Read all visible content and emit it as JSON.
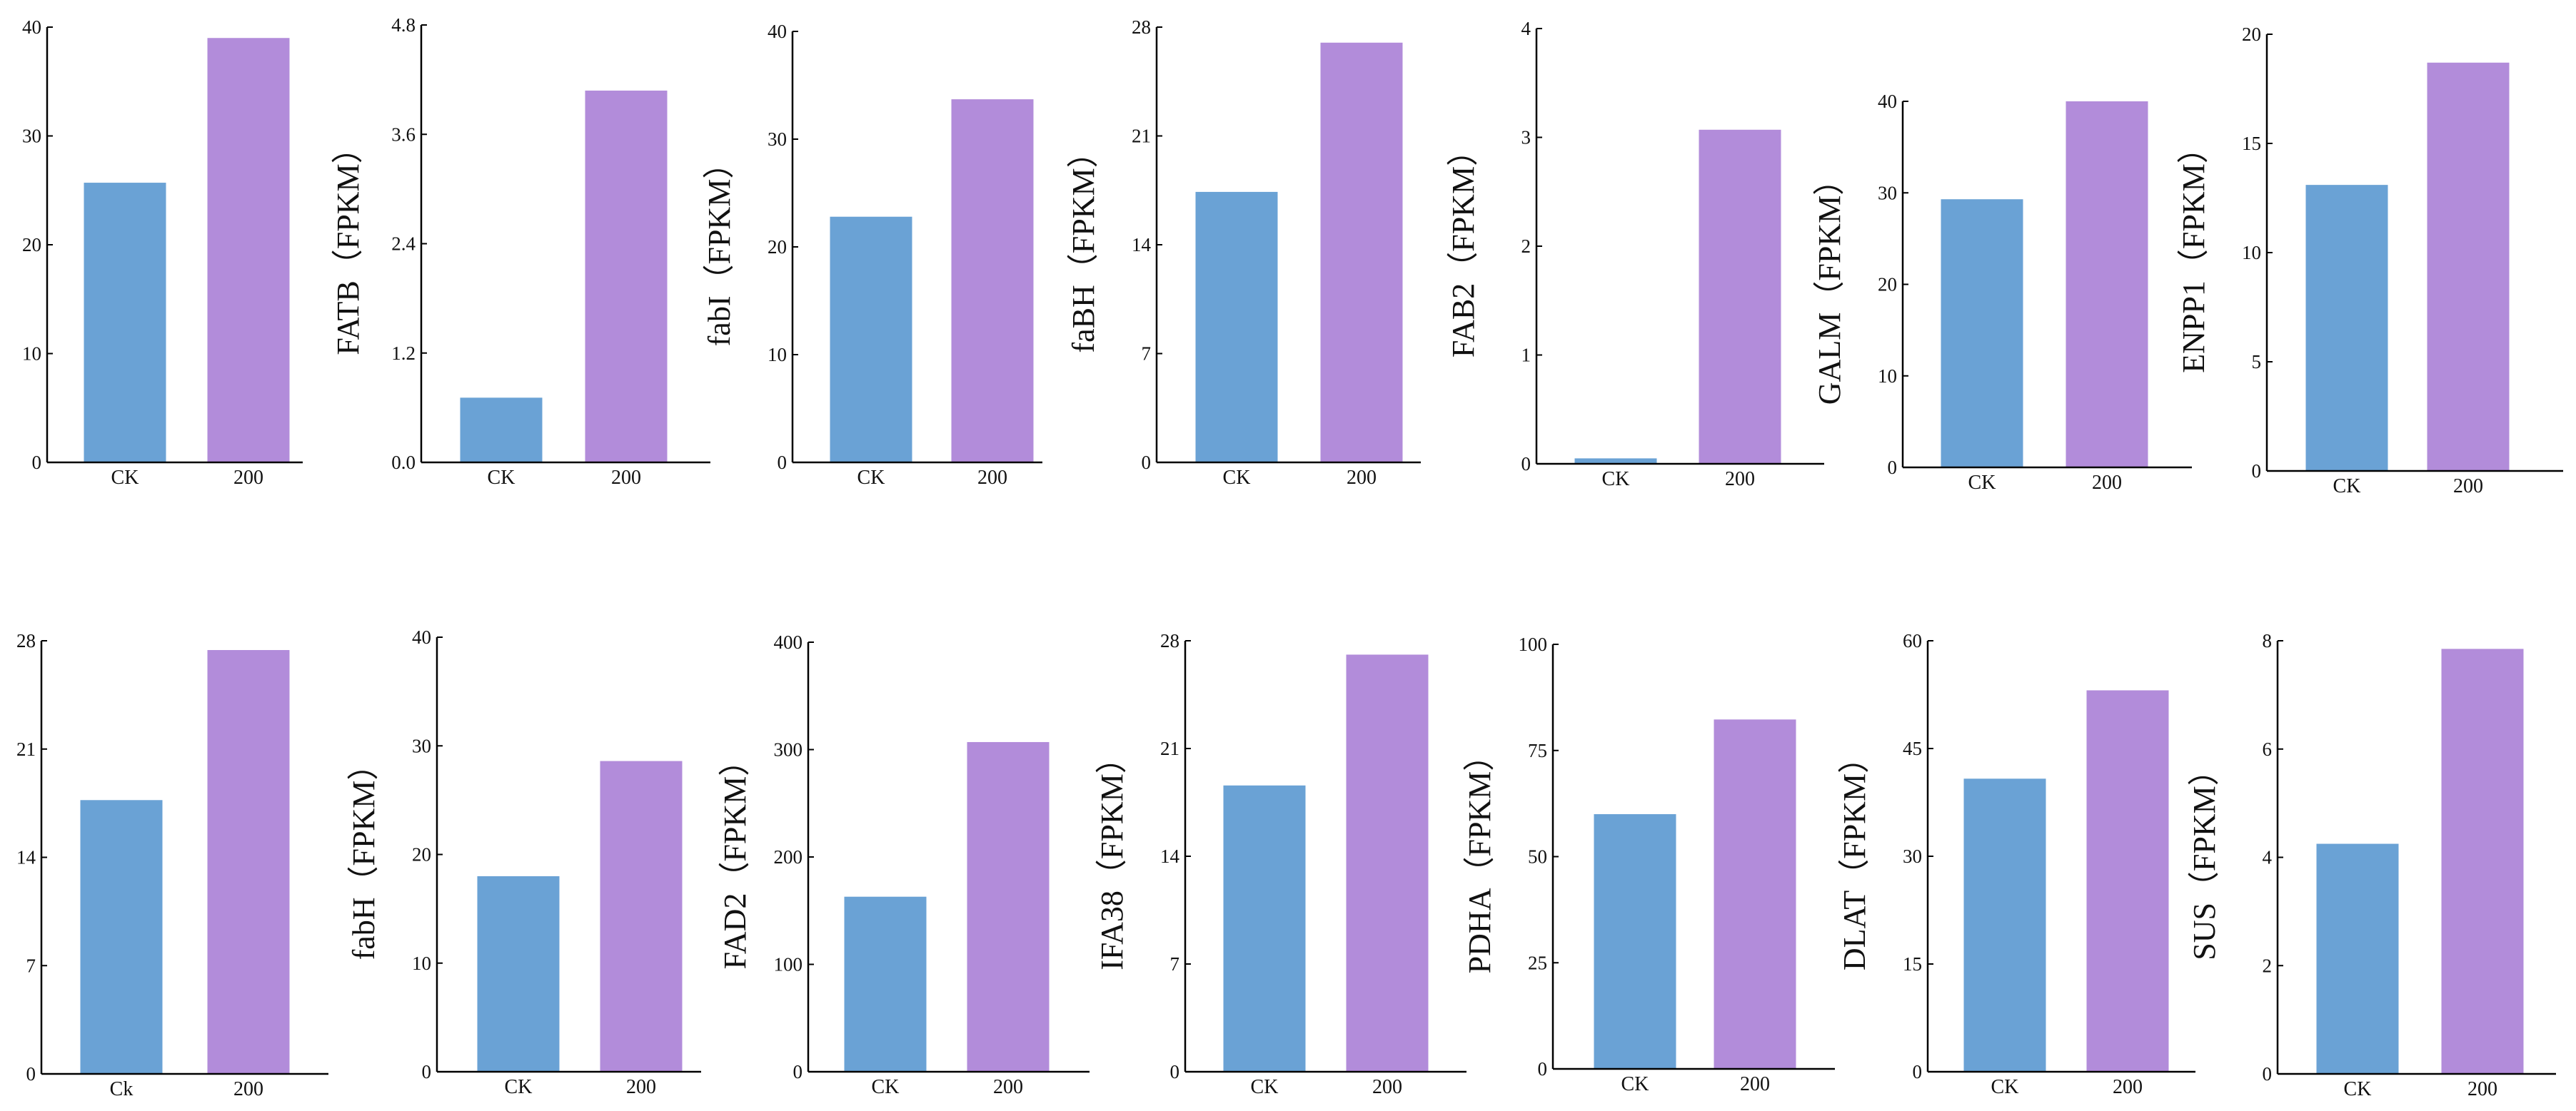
{
  "colors": {
    "ck": "#6aa2d5",
    "treat": "#b28cda",
    "axis": "#000000",
    "text": "#111111"
  },
  "chart_data": [
    {
      "type": "bar",
      "ylabel": "",
      "categories": [
        "CK",
        "200"
      ],
      "values": [
        25.7,
        39.0
      ],
      "ylim": [
        0,
        40
      ],
      "yticks": [
        "0",
        "10",
        "20",
        "30",
        "40"
      ]
    },
    {
      "type": "bar",
      "ylabel": "FATB（FPKM）",
      "categories": [
        "CK",
        "200"
      ],
      "values": [
        0.71,
        4.08
      ],
      "ylim": [
        0,
        4.8
      ],
      "yticks": [
        "0.0",
        "1.2",
        "2.4",
        "3.6",
        "4.8"
      ]
    },
    {
      "type": "bar",
      "ylabel": "fabI（FPKM）",
      "categories": [
        "CK",
        "200"
      ],
      "values": [
        22.8,
        33.7
      ],
      "ylim": [
        0,
        40
      ],
      "yticks": [
        "0",
        "10",
        "20",
        "30",
        "40"
      ]
    },
    {
      "type": "bar",
      "ylabel": "faBH（FPKM）",
      "categories": [
        "CK",
        "200"
      ],
      "values": [
        17.4,
        27.0
      ],
      "ylim": [
        0,
        28
      ],
      "yticks": [
        "0",
        "7",
        "14",
        "21",
        "28"
      ]
    },
    {
      "type": "bar",
      "ylabel": "FAB2（FPKM）",
      "categories": [
        "CK",
        "200"
      ],
      "values": [
        0.05,
        3.07
      ],
      "ylim": [
        0,
        4
      ],
      "yticks": [
        "0",
        "1",
        "2",
        "3",
        "4"
      ]
    },
    {
      "type": "bar",
      "ylabel": "GALM（FPKM）",
      "categories": [
        "CK",
        "200"
      ],
      "values": [
        29.3,
        40.0
      ],
      "ylim": [
        0,
        40
      ],
      "yticks": [
        "0",
        "10",
        "20",
        "30",
        "40"
      ]
    },
    {
      "type": "bar",
      "ylabel": "ENPP1（FPKM）",
      "categories": [
        "CK",
        "200"
      ],
      "values": [
        13.1,
        18.7
      ],
      "ylim": [
        0,
        20
      ],
      "yticks": [
        "0",
        "5",
        "10",
        "15",
        "20"
      ]
    },
    {
      "type": "bar",
      "ylabel": "",
      "categories": [
        "Ck",
        "200"
      ],
      "values": [
        17.7,
        27.4
      ],
      "ylim": [
        0,
        28
      ],
      "yticks": [
        "0",
        "7",
        "14",
        "21",
        "28"
      ]
    },
    {
      "type": "bar",
      "ylabel": "fabH（FPKM）",
      "categories": [
        "CK",
        "200"
      ],
      "values": [
        18.0,
        28.6
      ],
      "ylim": [
        0,
        40
      ],
      "yticks": [
        "0",
        "10",
        "20",
        "30",
        "40"
      ]
    },
    {
      "type": "bar",
      "ylabel": "FAD2（FPKM）",
      "categories": [
        "CK",
        "200"
      ],
      "values": [
        163,
        307
      ],
      "ylim": [
        0,
        400
      ],
      "yticks": [
        "0",
        "100",
        "200",
        "300",
        "400"
      ]
    },
    {
      "type": "bar",
      "ylabel": "IFA38（FPKM）",
      "categories": [
        "CK",
        "200"
      ],
      "values": [
        18.6,
        27.1
      ],
      "ylim": [
        0,
        28
      ],
      "yticks": [
        "0",
        "7",
        "14",
        "21",
        "28"
      ]
    },
    {
      "type": "bar",
      "ylabel": "PDHA（FPKM）",
      "categories": [
        "CK",
        "200"
      ],
      "values": [
        60.0,
        82.3
      ],
      "ylim": [
        0,
        100
      ],
      "yticks": [
        "0",
        "25",
        "50",
        "75",
        "100"
      ]
    },
    {
      "type": "bar",
      "ylabel": "DLAT（FPKM）",
      "categories": [
        "CK",
        "200"
      ],
      "values": [
        40.8,
        53.1
      ],
      "ylim": [
        0,
        60
      ],
      "yticks": [
        "0",
        "15",
        "30",
        "45",
        "60"
      ]
    },
    {
      "type": "bar",
      "ylabel": "SUS（FPKM）",
      "categories": [
        "CK",
        "200"
      ],
      "values": [
        4.25,
        7.85
      ],
      "ylim": [
        0,
        8
      ],
      "yticks": [
        "0",
        "2",
        "4",
        "6",
        "8"
      ]
    }
  ]
}
